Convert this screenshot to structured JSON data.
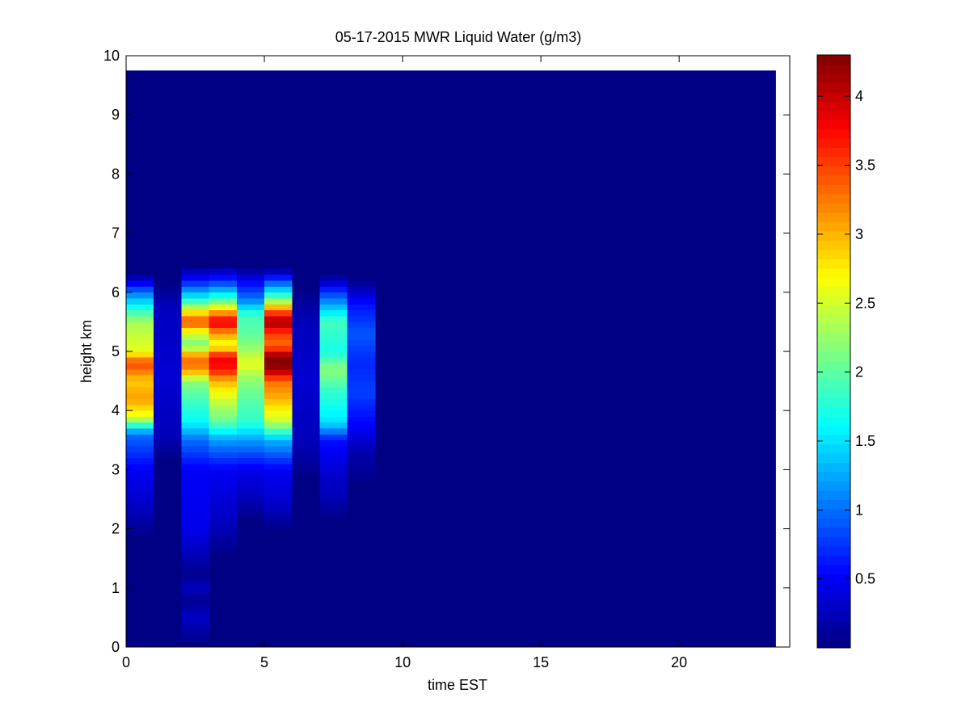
{
  "chart_data": {
    "type": "heatmap",
    "title": "05-17-2015 MWR Liquid Water (g/m3)",
    "xlabel": "time EST",
    "ylabel": "height km",
    "xlim": [
      0,
      24
    ],
    "ylim": [
      0,
      10
    ],
    "x_ticks": [
      0,
      5,
      10,
      15,
      20
    ],
    "y_ticks": [
      0,
      1,
      2,
      3,
      4,
      5,
      6,
      7,
      8,
      9,
      10
    ],
    "colorbar": {
      "label": "",
      "range": [
        0.0,
        4.3
      ],
      "ticks": [
        0.5,
        1,
        1.5,
        2,
        2.5,
        3,
        3.5,
        4
      ],
      "colormap": "jet"
    },
    "data_extent": {
      "x": [
        0,
        23.5
      ],
      "y": [
        0,
        9.75
      ]
    },
    "time_bin_hours": 1,
    "height_bin_km": 0.1,
    "background_value": 0.02,
    "columns": [
      {
        "t": 0,
        "profile": [
          [
            1.9,
            0.05
          ],
          [
            2.3,
            0.25
          ],
          [
            3.0,
            0.5
          ],
          [
            3.6,
            1.0
          ],
          [
            3.9,
            2.6
          ],
          [
            4.2,
            3.1
          ],
          [
            4.5,
            2.9
          ],
          [
            4.8,
            3.5
          ],
          [
            5.0,
            2.6
          ],
          [
            5.5,
            2.3
          ],
          [
            5.9,
            1.3
          ],
          [
            6.1,
            0.7
          ],
          [
            6.3,
            0.05
          ]
        ]
      },
      {
        "t": 1,
        "profile": [
          [
            3.2,
            0.05
          ],
          [
            3.6,
            0.25
          ],
          [
            4.6,
            0.35
          ],
          [
            5.8,
            0.25
          ],
          [
            6.1,
            0.05
          ]
        ]
      },
      {
        "t": 2,
        "profile": [
          [
            0.1,
            0.05
          ],
          [
            0.5,
            0.3
          ],
          [
            0.8,
            0.05
          ],
          [
            1.0,
            0.3
          ],
          [
            1.2,
            0.05
          ],
          [
            1.6,
            0.25
          ],
          [
            2.0,
            0.45
          ],
          [
            3.0,
            0.5
          ],
          [
            3.5,
            1.0
          ],
          [
            3.8,
            1.6
          ],
          [
            4.2,
            1.9
          ],
          [
            4.5,
            2.2
          ],
          [
            4.7,
            3.2
          ],
          [
            4.9,
            3.3
          ],
          [
            5.1,
            2.1
          ],
          [
            5.3,
            2.5
          ],
          [
            5.5,
            3.5
          ],
          [
            5.7,
            2.6
          ],
          [
            5.9,
            1.6
          ],
          [
            6.2,
            0.6
          ],
          [
            6.45,
            0.05
          ]
        ]
      },
      {
        "t": 3,
        "profile": [
          [
            1.6,
            0.05
          ],
          [
            2.2,
            0.3
          ],
          [
            3.0,
            0.5
          ],
          [
            3.5,
            1.2
          ],
          [
            3.8,
            2.0
          ],
          [
            4.2,
            2.5
          ],
          [
            4.5,
            3.0
          ],
          [
            4.7,
            3.7
          ],
          [
            4.9,
            3.8
          ],
          [
            5.1,
            2.6
          ],
          [
            5.3,
            3.1
          ],
          [
            5.5,
            3.9
          ],
          [
            5.7,
            2.9
          ],
          [
            5.9,
            1.8
          ],
          [
            6.2,
            0.7
          ],
          [
            6.45,
            0.05
          ]
        ]
      },
      {
        "t": 4,
        "profile": [
          [
            2.2,
            0.05
          ],
          [
            2.6,
            0.3
          ],
          [
            3.0,
            0.45
          ],
          [
            3.5,
            1.2
          ],
          [
            3.8,
            1.8
          ],
          [
            4.2,
            2.0
          ],
          [
            4.5,
            2.2
          ],
          [
            4.8,
            2.6
          ],
          [
            5.0,
            2.3
          ],
          [
            5.3,
            2.0
          ],
          [
            5.6,
            1.9
          ],
          [
            5.9,
            1.0
          ],
          [
            6.2,
            0.5
          ],
          [
            6.4,
            0.05
          ]
        ]
      },
      {
        "t": 5,
        "profile": [
          [
            2.0,
            0.05
          ],
          [
            2.4,
            0.3
          ],
          [
            3.0,
            0.5
          ],
          [
            3.5,
            1.3
          ],
          [
            3.8,
            2.4
          ],
          [
            4.2,
            3.0
          ],
          [
            4.5,
            3.3
          ],
          [
            4.7,
            4.2
          ],
          [
            4.9,
            4.3
          ],
          [
            5.1,
            3.3
          ],
          [
            5.3,
            3.5
          ],
          [
            5.5,
            4.2
          ],
          [
            5.7,
            3.3
          ],
          [
            5.9,
            2.0
          ],
          [
            6.2,
            0.8
          ],
          [
            6.4,
            0.05
          ]
        ]
      },
      {
        "t": 6,
        "profile": [
          [
            2.9,
            0.05
          ],
          [
            3.5,
            0.25
          ],
          [
            4.5,
            0.35
          ],
          [
            5.5,
            0.25
          ],
          [
            6.0,
            0.05
          ]
        ]
      },
      {
        "t": 7,
        "profile": [
          [
            2.2,
            0.05
          ],
          [
            2.6,
            0.25
          ],
          [
            3.0,
            0.35
          ],
          [
            3.5,
            0.6
          ],
          [
            3.8,
            1.5
          ],
          [
            4.3,
            1.8
          ],
          [
            4.7,
            2.2
          ],
          [
            5.0,
            1.7
          ],
          [
            5.5,
            1.9
          ],
          [
            5.9,
            1.0
          ],
          [
            6.15,
            0.4
          ],
          [
            6.3,
            0.05
          ]
        ]
      },
      {
        "t": 8,
        "profile": [
          [
            2.8,
            0.05
          ],
          [
            3.3,
            0.2
          ],
          [
            3.7,
            0.5
          ],
          [
            4.3,
            0.8
          ],
          [
            4.8,
            0.7
          ],
          [
            5.3,
            0.9
          ],
          [
            5.8,
            0.6
          ],
          [
            6.2,
            0.05
          ]
        ]
      }
    ]
  }
}
